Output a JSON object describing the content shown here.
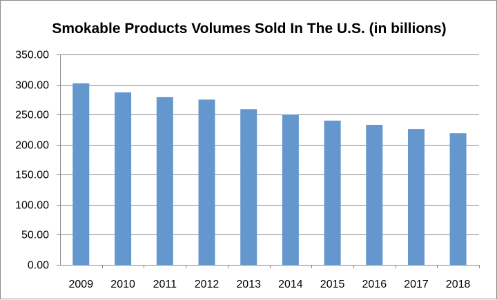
{
  "chart_data": {
    "type": "bar",
    "title": "Smokable Products Volumes Sold In The U.S. (in billions)",
    "xlabel": "",
    "ylabel": "",
    "categories": [
      "2009",
      "2010",
      "2011",
      "2012",
      "2013",
      "2014",
      "2015",
      "2016",
      "2017",
      "2018"
    ],
    "values": [
      302,
      287,
      279,
      275,
      259,
      250,
      240,
      233,
      226,
      219
    ],
    "ylim": [
      0,
      350
    ],
    "yticks": [
      "0.00",
      "50.00",
      "100.00",
      "150.00",
      "200.00",
      "250.00",
      "300.00",
      "350.00"
    ],
    "grid": true,
    "legend": "none",
    "bar_color": "#6497cd"
  }
}
